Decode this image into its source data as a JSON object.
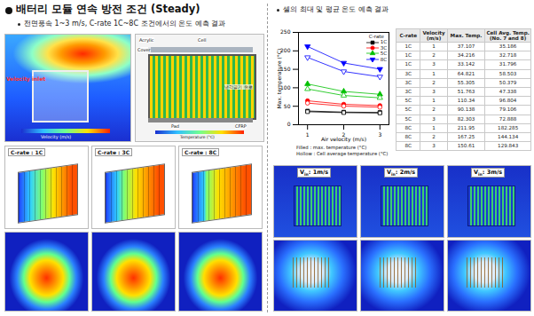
{
  "header": {
    "title": "배터리 모듈 연속 방전 조건 (Steady)"
  },
  "left": {
    "bullet": "전면풍속 1~3 m/s, C-rate 1C~8C 조건에서의 온도 예측 결과",
    "flow_image": {
      "labels": [
        "Velocity inlet"
      ],
      "colorbar": "Velocity (m/s)"
    },
    "module_image": {
      "labels": [
        "Acrylic",
        "Cover",
        "Cell",
        "Pad",
        "CFRP",
        "냉각공기 유로"
      ],
      "colorbar": "Temperature (°C)"
    },
    "crate_images": [
      "C-rate : 1C",
      "C-rate : 3C",
      "C-rate : 8C"
    ]
  },
  "right": {
    "bullet": "셀의 최대 및 평균 온도 예측 결과",
    "table": {
      "columns": [
        "C-rate",
        "Velocity (m/s)",
        "Max. Temp.",
        "Cell Avg. Temp. (No. 7 and 8)"
      ],
      "rows": [
        [
          "1C",
          1,
          37.107,
          35.186
        ],
        [
          "1C",
          2,
          34.216,
          32.718
        ],
        [
          "1C",
          3,
          33.142,
          31.796
        ],
        [
          "3C",
          1,
          64.821,
          58.503
        ],
        [
          "3C",
          2,
          55.305,
          50.379
        ],
        [
          "3C",
          3,
          51.763,
          47.338
        ],
        [
          "5C",
          1,
          110.34,
          96.804
        ],
        [
          "5C",
          2,
          90.138,
          79.106
        ],
        [
          "5C",
          3,
          82.303,
          72.888
        ],
        [
          "8C",
          1,
          211.95,
          182.285
        ],
        [
          "8C",
          2,
          167.25,
          144.134
        ],
        [
          "8C",
          3,
          150.61,
          129.843
        ]
      ]
    },
    "velocity_images": [
      {
        "symbol": "V",
        "subscript": "in",
        "text": ": 1m/s"
      },
      {
        "symbol": "V",
        "subscript": "in",
        "text": ": 2m/s"
      },
      {
        "symbol": "V",
        "subscript": "in",
        "text": ": 3m/s"
      }
    ]
  },
  "chart_data": {
    "type": "line",
    "x_label": "Air velocity (m/s)",
    "y_label": "Max. temperature (°C)",
    "x": [
      1,
      2,
      3
    ],
    "xlim": [
      0.75,
      3.25
    ],
    "xticks": [
      1,
      2,
      3
    ],
    "ylim": [
      0,
      250
    ],
    "yticks": [
      0,
      50,
      100,
      150,
      200,
      250
    ],
    "grid": false,
    "legend": "top-right",
    "legend_title": "C-rate",
    "annotations": [
      "Filled : max. temperature (°C)",
      "Hollow : Cell average temperature (°C)"
    ],
    "series": [
      {
        "name": "1C",
        "color": "#000000",
        "marker": "square",
        "values": [
          37.107,
          34.216,
          33.142
        ]
      },
      {
        "name": "1C",
        "color": "#000000",
        "marker": "square-open",
        "values": [
          35.186,
          32.718,
          31.796
        ]
      },
      {
        "name": "3C",
        "color": "#ff0000",
        "marker": "circle",
        "values": [
          64.821,
          55.305,
          51.763
        ]
      },
      {
        "name": "3C",
        "color": "#ff0000",
        "marker": "circle-open",
        "values": [
          58.503,
          50.379,
          47.338
        ]
      },
      {
        "name": "5C",
        "color": "#00c000",
        "marker": "triangle",
        "values": [
          110.34,
          90.138,
          82.303
        ]
      },
      {
        "name": "5C",
        "color": "#00c000",
        "marker": "triangle-open",
        "values": [
          96.804,
          79.106,
          72.888
        ]
      },
      {
        "name": "8C",
        "color": "#0000ff",
        "marker": "triangle-down",
        "values": [
          211.95,
          167.25,
          150.61
        ]
      },
      {
        "name": "8C",
        "color": "#0000ff",
        "marker": "triangle-down-open",
        "values": [
          182.285,
          144.134,
          129.843
        ]
      }
    ]
  }
}
